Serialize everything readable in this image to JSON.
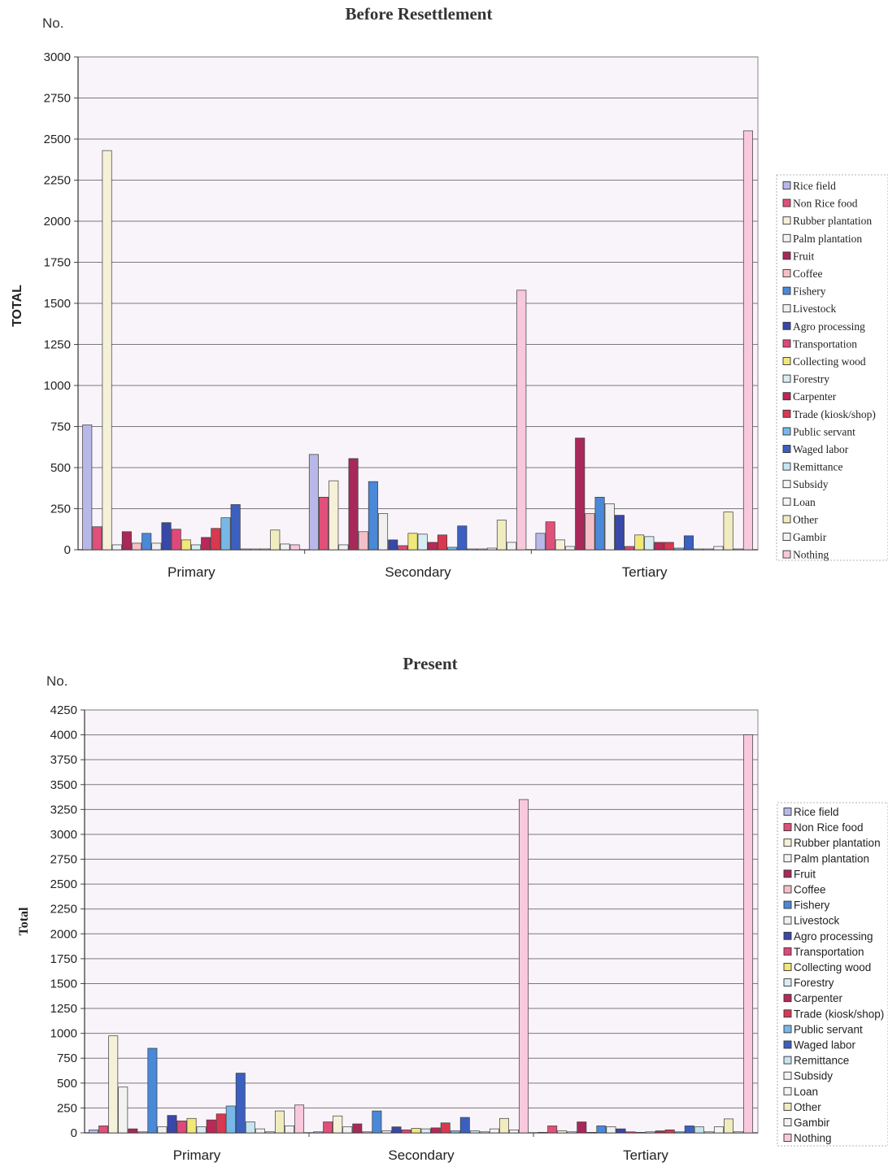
{
  "colors": {
    "Rice field": "#b8b8e8",
    "Non Rice food": "#e0507a",
    "Rubber plantation": "#f5f0d8",
    "Palm plantation": "#f2f2f2",
    "Fruit": "#a8285a",
    "Coffee": "#f4c0c8",
    "Fishery": "#4a88d8",
    "Livestock": "#f0f0f0",
    "Agro processing": "#3848a8",
    "Transportation": "#e0487a",
    "Collecting wood": "#f0e878",
    "Forestry": "#d8ecf4",
    "Carpenter": "#b82858",
    "Trade (kiosk/shop)": "#d83850",
    "Public servant": "#78b8e8",
    "Waged labor": "#3c60c0",
    "Remittance": "#c8e4f0",
    "Subsidy": "#f4f4f4",
    "Loan": "#f4f4f4",
    "Other": "#f0ecc0",
    "Gambir": "#f2f2f2",
    "Nothing": "#f8c8dc"
  },
  "chart_data": [
    {
      "type": "bar",
      "title": "Before Resettlement",
      "unit_label": "No.",
      "ylabel": "TOTAL",
      "ylim": [
        0,
        3000
      ],
      "yticks": [
        0,
        250,
        500,
        750,
        1000,
        1250,
        1500,
        1750,
        2000,
        2250,
        2500,
        2750,
        3000
      ],
      "grid": true,
      "legend_position": "right",
      "categories": [
        "Primary",
        "Secondary",
        "Tertiary"
      ],
      "series": [
        {
          "name": "Rice field",
          "values": [
            760,
            580,
            100
          ]
        },
        {
          "name": "Non Rice food",
          "values": [
            140,
            320,
            170
          ]
        },
        {
          "name": "Rubber plantation",
          "values": [
            2430,
            420,
            60
          ]
        },
        {
          "name": "Palm plantation",
          "values": [
            30,
            30,
            20
          ]
        },
        {
          "name": "Fruit",
          "values": [
            110,
            555,
            680
          ]
        },
        {
          "name": "Coffee",
          "values": [
            40,
            110,
            220
          ]
        },
        {
          "name": "Fishery",
          "values": [
            100,
            415,
            320
          ]
        },
        {
          "name": "Livestock",
          "values": [
            40,
            220,
            280
          ]
        },
        {
          "name": "Agro processing",
          "values": [
            165,
            60,
            210
          ]
        },
        {
          "name": "Transportation",
          "values": [
            125,
            25,
            20
          ]
        },
        {
          "name": "Collecting wood",
          "values": [
            60,
            100,
            90
          ]
        },
        {
          "name": "Forestry",
          "values": [
            30,
            95,
            80
          ]
        },
        {
          "name": "Carpenter",
          "values": [
            75,
            45,
            45
          ]
        },
        {
          "name": "Trade (kiosk/shop)",
          "values": [
            130,
            90,
            45
          ]
        },
        {
          "name": "Public servant",
          "values": [
            195,
            15,
            10
          ]
        },
        {
          "name": "Waged labor",
          "values": [
            275,
            145,
            85
          ]
        },
        {
          "name": "Remittance",
          "values": [
            5,
            5,
            5
          ]
        },
        {
          "name": "Subsidy",
          "values": [
            5,
            5,
            5
          ]
        },
        {
          "name": "Loan",
          "values": [
            5,
            10,
            20
          ]
        },
        {
          "name": "Other",
          "values": [
            120,
            180,
            230
          ]
        },
        {
          "name": "Gambir",
          "values": [
            35,
            45,
            5
          ]
        },
        {
          "name": "Nothing",
          "values": [
            30,
            1580,
            2550
          ]
        }
      ]
    },
    {
      "type": "bar",
      "title": "Present",
      "unit_label": "No.",
      "ylabel": "Total",
      "ylim": [
        0,
        4250
      ],
      "yticks": [
        0,
        250,
        500,
        750,
        1000,
        1250,
        1500,
        1750,
        2000,
        2250,
        2500,
        2750,
        3000,
        3250,
        3500,
        3750,
        4000,
        4250
      ],
      "grid": true,
      "legend_position": "right",
      "categories": [
        "Primary",
        "Secondary",
        "Tertiary"
      ],
      "series": [
        {
          "name": "Rice field",
          "values": [
            30,
            10,
            5
          ]
        },
        {
          "name": "Non Rice food",
          "values": [
            70,
            110,
            70
          ]
        },
        {
          "name": "Rubber plantation",
          "values": [
            975,
            170,
            20
          ]
        },
        {
          "name": "Palm plantation",
          "values": [
            460,
            60,
            10
          ]
        },
        {
          "name": "Fruit",
          "values": [
            40,
            90,
            110
          ]
        },
        {
          "name": "Coffee",
          "values": [
            10,
            10,
            5
          ]
        },
        {
          "name": "Fishery",
          "values": [
            850,
            220,
            70
          ]
        },
        {
          "name": "Livestock",
          "values": [
            60,
            20,
            60
          ]
        },
        {
          "name": "Agro processing",
          "values": [
            175,
            60,
            40
          ]
        },
        {
          "name": "Transportation",
          "values": [
            120,
            30,
            10
          ]
        },
        {
          "name": "Collecting wood",
          "values": [
            145,
            45,
            5
          ]
        },
        {
          "name": "Forestry",
          "values": [
            60,
            40,
            10
          ]
        },
        {
          "name": "Carpenter",
          "values": [
            130,
            50,
            20
          ]
        },
        {
          "name": "Trade (kiosk/shop)",
          "values": [
            190,
            100,
            30
          ]
        },
        {
          "name": "Public servant",
          "values": [
            270,
            20,
            10
          ]
        },
        {
          "name": "Waged labor",
          "values": [
            600,
            155,
            70
          ]
        },
        {
          "name": "Remittance",
          "values": [
            110,
            20,
            60
          ]
        },
        {
          "name": "Subsidy",
          "values": [
            40,
            10,
            10
          ]
        },
        {
          "name": "Loan",
          "values": [
            10,
            40,
            60
          ]
        },
        {
          "name": "Other",
          "values": [
            220,
            145,
            140
          ]
        },
        {
          "name": "Gambir",
          "values": [
            70,
            30,
            10
          ]
        },
        {
          "name": "Nothing",
          "values": [
            280,
            3350,
            4000
          ]
        }
      ]
    }
  ]
}
